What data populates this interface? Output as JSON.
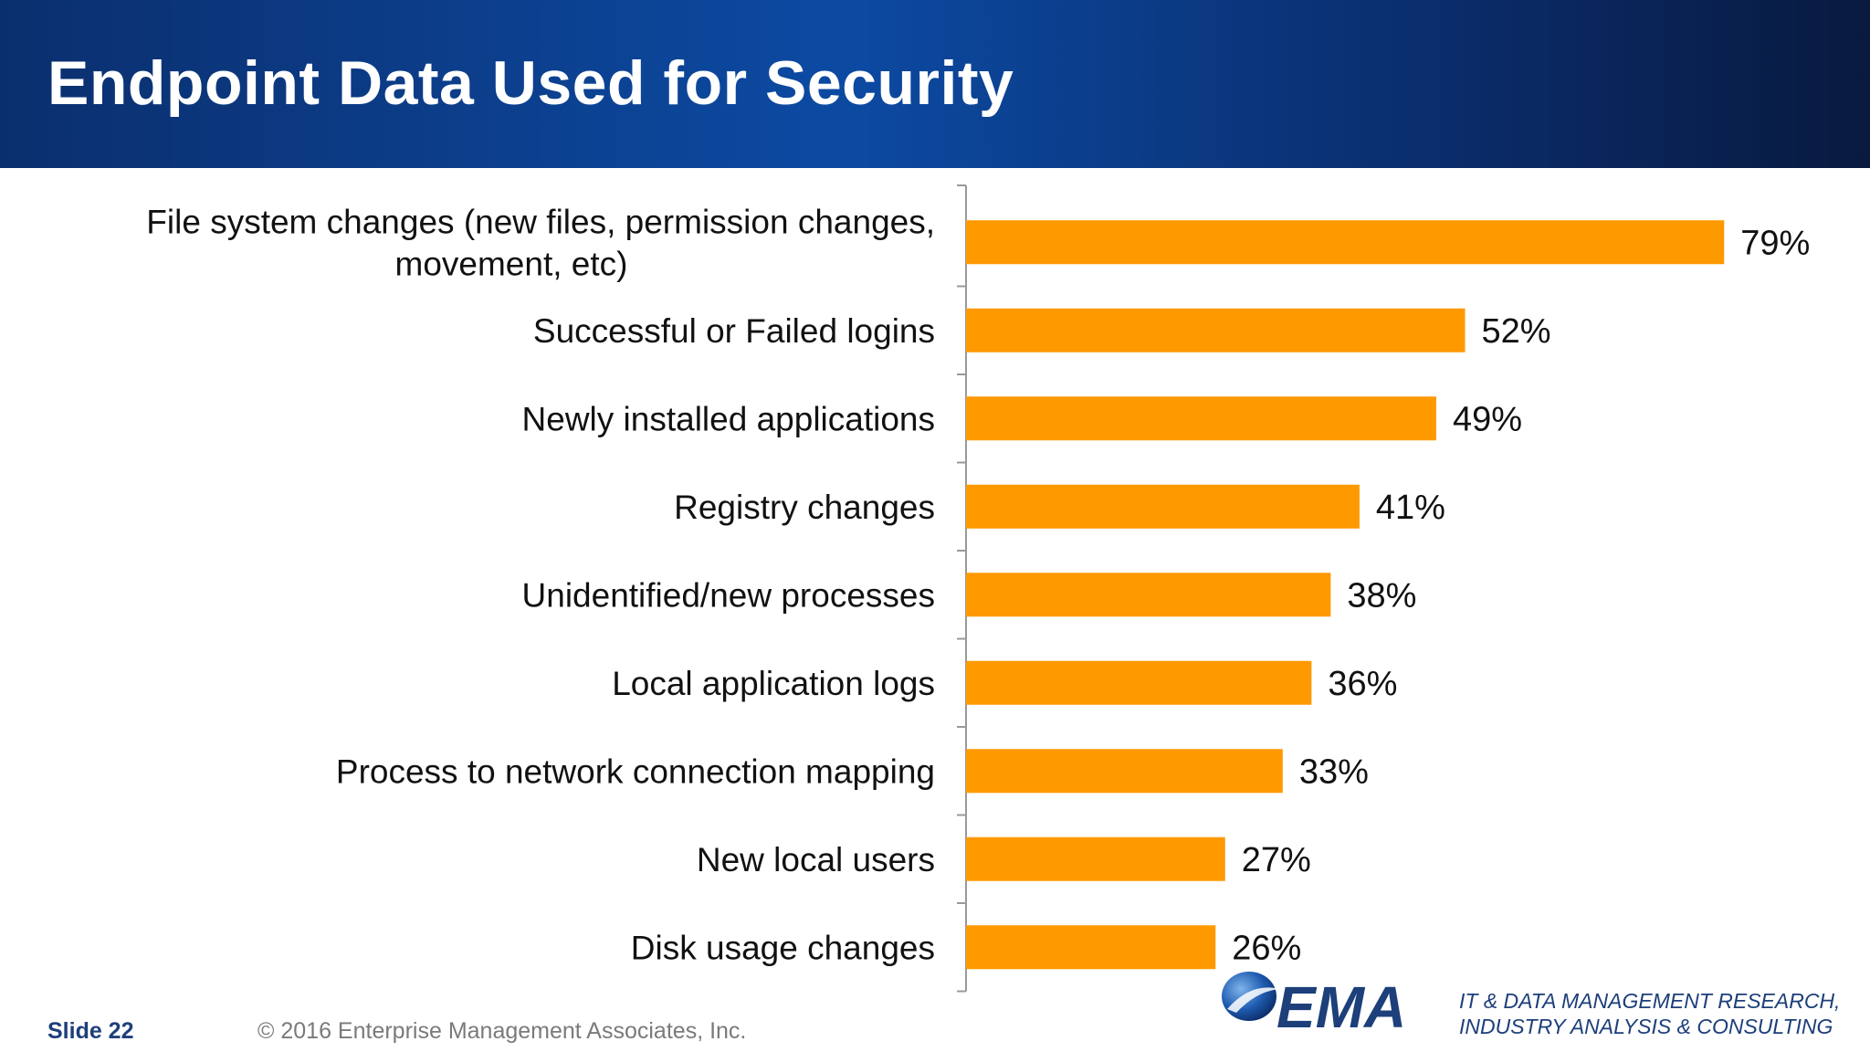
{
  "header": {
    "title": "Endpoint Data Used for Security"
  },
  "footer": {
    "slide_label": "Slide 22",
    "copyright": "© 2016 Enterprise Management Associates, Inc.",
    "logo_text": "EMA",
    "tagline_line1": "IT & DATA MANAGEMENT RESEARCH,",
    "tagline_line2": "INDUSTRY ANALYSIS & CONSULTING"
  },
  "colors": {
    "bar": "#ff9900",
    "header_dark": "#0b2f6e",
    "brand_blue": "#1d3f7a"
  },
  "chart_data": {
    "type": "bar",
    "orientation": "horizontal",
    "categories": [
      [
        "File system changes (new files, permission changes,",
        "movement, etc)"
      ],
      [
        "Successful or Failed logins"
      ],
      [
        "Newly installed applications"
      ],
      [
        "Registry changes"
      ],
      [
        "Unidentified/new processes"
      ],
      [
        "Local application logs"
      ],
      [
        "Process to network connection mapping"
      ],
      [
        "New local users"
      ],
      [
        "Disk usage changes"
      ]
    ],
    "values": [
      79,
      52,
      49,
      41,
      38,
      36,
      33,
      27,
      26
    ],
    "data_labels": [
      "79%",
      "52%",
      "49%",
      "41%",
      "38%",
      "36%",
      "33%",
      "27%",
      "26%"
    ],
    "xlim": [
      0,
      100
    ],
    "unit": "%",
    "grid": false,
    "legend": "none"
  }
}
